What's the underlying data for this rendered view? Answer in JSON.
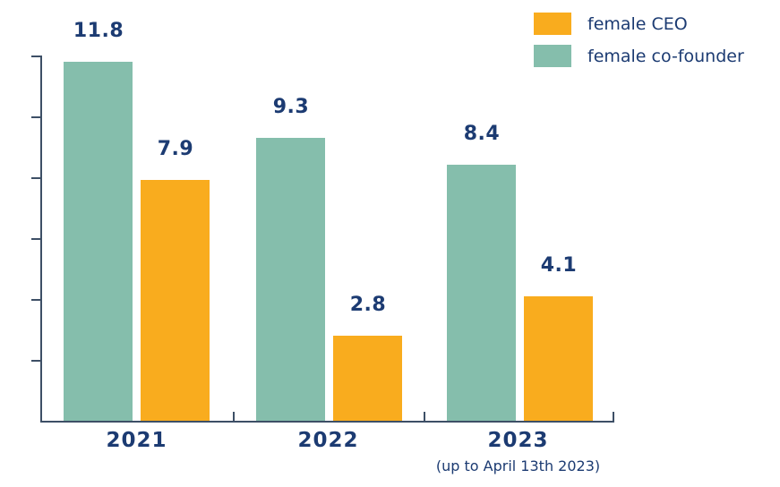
{
  "chart_data": {
    "type": "bar",
    "title": "",
    "categories": [
      "2021",
      "2022",
      "2023"
    ],
    "category_sublabels": [
      "",
      "",
      "(up to April 13th 2023)"
    ],
    "series": [
      {
        "name": "female co-founder",
        "color": "#85beac",
        "values": [
          11.8,
          9.3,
          8.4
        ]
      },
      {
        "name": "female CEO",
        "color": "#f9ac1e",
        "values": [
          7.9,
          2.8,
          4.1
        ]
      }
    ],
    "value_labels_shown": true,
    "ylabel": "",
    "xlabel": "",
    "ylim": [
      0,
      12
    ],
    "y_tick_interval": 2,
    "y_tick_labels_visible": false,
    "grid": false,
    "legend_position": "top-right"
  },
  "legend": {
    "items": [
      {
        "label": "female CEO",
        "color": "#f9ac1e"
      },
      {
        "label": "female co-founder",
        "color": "#85beac"
      }
    ]
  },
  "colors": {
    "label_text": "#1c3b72",
    "axis": "#3d4f66",
    "background": "#ffffff"
  }
}
